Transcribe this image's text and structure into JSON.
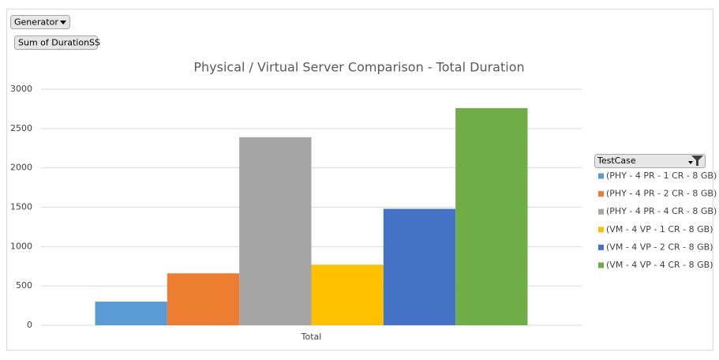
{
  "chart_data": {
    "type": "bar",
    "title": "Physical / Virtual Server Comparison - Total Duration",
    "report_filter": "Generator",
    "value_field": "Sum of DurationSS",
    "legend_title": "TestCase",
    "categories": [
      "Total"
    ],
    "series": [
      {
        "name": "(PHY - 4 PR - 1 CR - 8 GB)",
        "color": "#5b9bd5",
        "values": [
          300
        ]
      },
      {
        "name": "(PHY - 4 PR - 2 CR - 8 GB)",
        "color": "#ed7d31",
        "values": [
          660
        ]
      },
      {
        "name": "(PHY - 4 PR - 4 CR - 8 GB)",
        "color": "#a5a5a5",
        "values": [
          2390
        ]
      },
      {
        "name": "(VM - 4 VP - 1 CR - 8 GB)",
        "color": "#ffc000",
        "values": [
          770
        ]
      },
      {
        "name": "(VM - 4 VP - 2 CR - 8 GB)",
        "color": "#4472c4",
        "values": [
          1480
        ]
      },
      {
        "name": "(VM - 4 VP - 4 CR - 8 GB)",
        "color": "#70ad47",
        "values": [
          2760
        ]
      }
    ],
    "ylim": [
      0,
      3000
    ],
    "yticks": [
      0,
      500,
      1000,
      1500,
      2000,
      2500,
      3000
    ],
    "grid": true,
    "legend": "right"
  }
}
